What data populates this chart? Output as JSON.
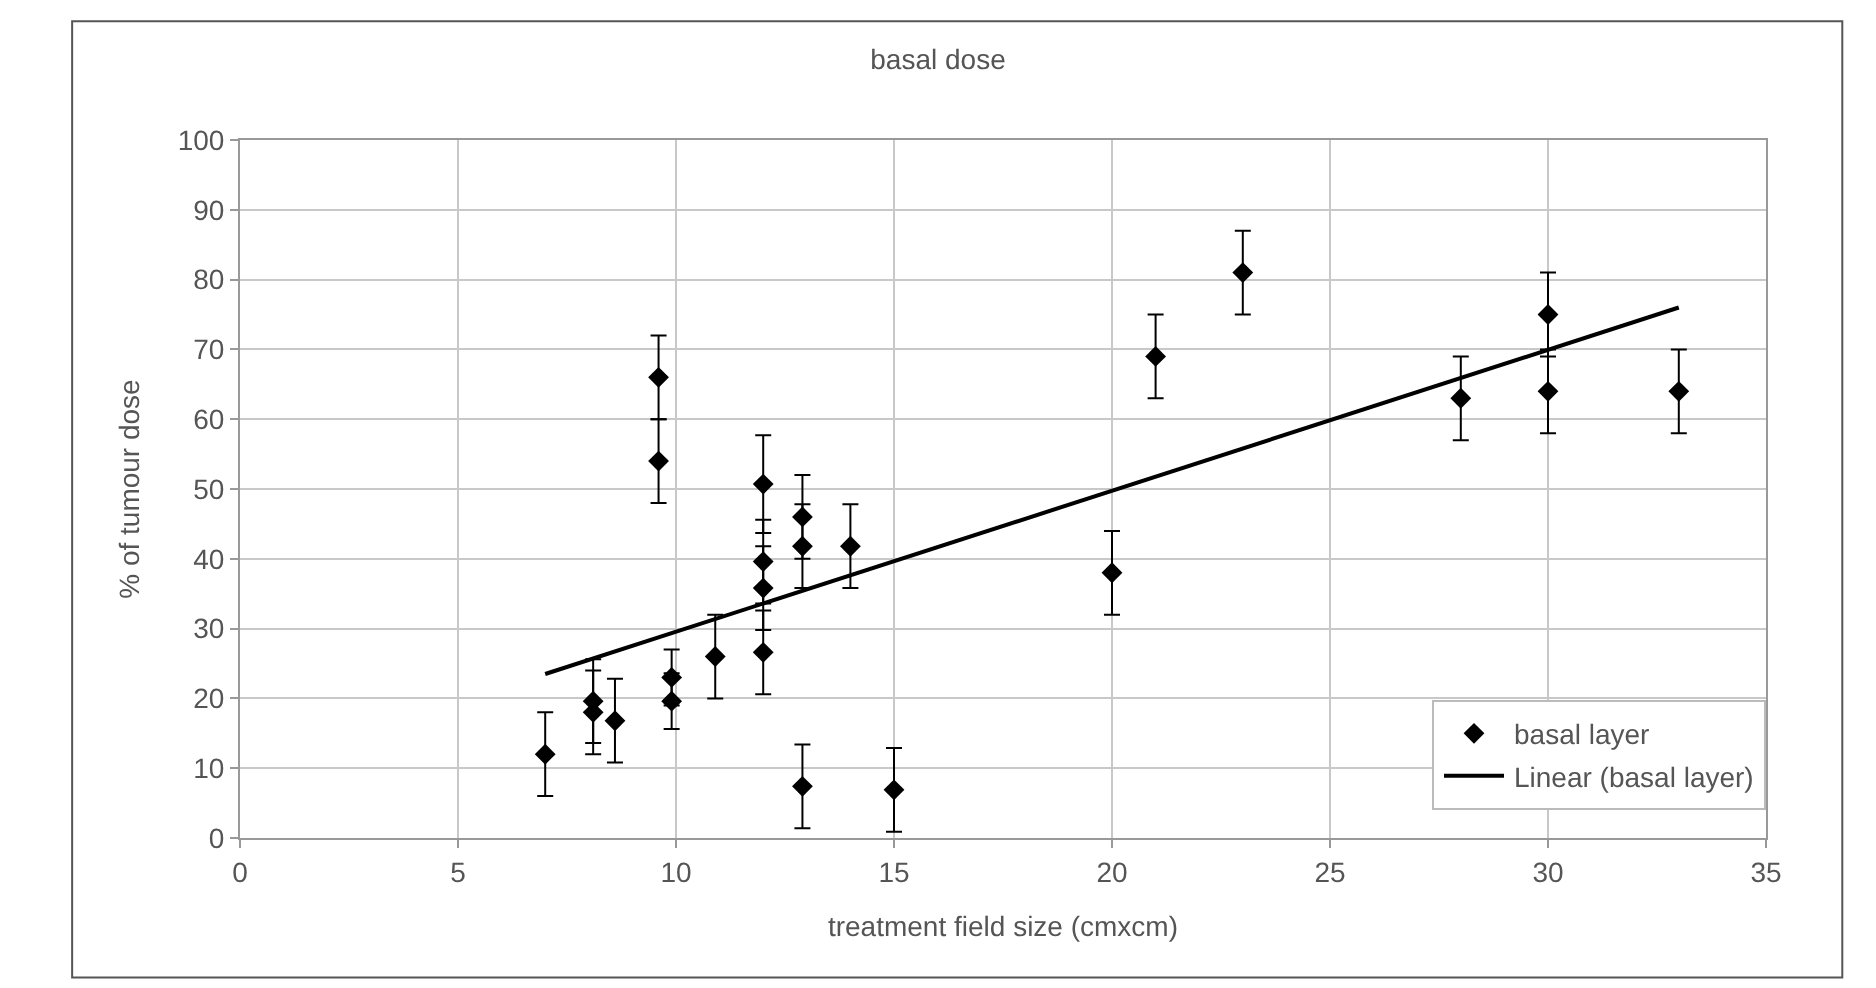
{
  "chart_data": {
    "type": "scatter",
    "title": "basal dose",
    "xlabel": "treatment field size (cmxcm)",
    "ylabel": "% of tumour dose",
    "xlim": [
      0,
      35
    ],
    "xticks": [
      0,
      5,
      10,
      15,
      20,
      25,
      30,
      35
    ],
    "ylim": [
      0,
      100
    ],
    "yticks": [
      0,
      10,
      20,
      30,
      40,
      50,
      60,
      70,
      80,
      90,
      100
    ],
    "grid": true,
    "legend": "bottom right",
    "series": [
      {
        "name": "basal layer",
        "marker": "diamond",
        "color": "#000000",
        "x": [
          7.0,
          8.1,
          8.1,
          8.6,
          9.6,
          9.6,
          9.9,
          9.9,
          10.9,
          12.0,
          12.0,
          12.0,
          12.0,
          12.9,
          12.9,
          12.9,
          14.0,
          15.0,
          20.0,
          21.0,
          23.0,
          28.0,
          30.0,
          30.0,
          33.0
        ],
        "values": [
          12,
          19.6,
          18,
          16.8,
          66,
          54,
          23,
          19.6,
          26,
          50.7,
          39.6,
          35.8,
          26.6,
          46,
          41.8,
          7.4,
          41.8,
          6.9,
          38,
          69,
          81,
          63,
          75,
          64,
          64
        ],
        "errors": [
          6,
          6,
          6,
          6,
          6,
          6,
          4,
          4,
          6,
          7,
          6,
          6,
          6,
          6,
          6,
          6,
          6,
          6,
          6,
          6,
          6,
          6,
          6,
          6,
          6
        ]
      },
      {
        "name": "Linear (basal layer)",
        "type": "line",
        "color": "#000000",
        "line_style": "solid",
        "x": [
          7,
          33
        ],
        "values": [
          23.5,
          76
        ]
      }
    ]
  }
}
